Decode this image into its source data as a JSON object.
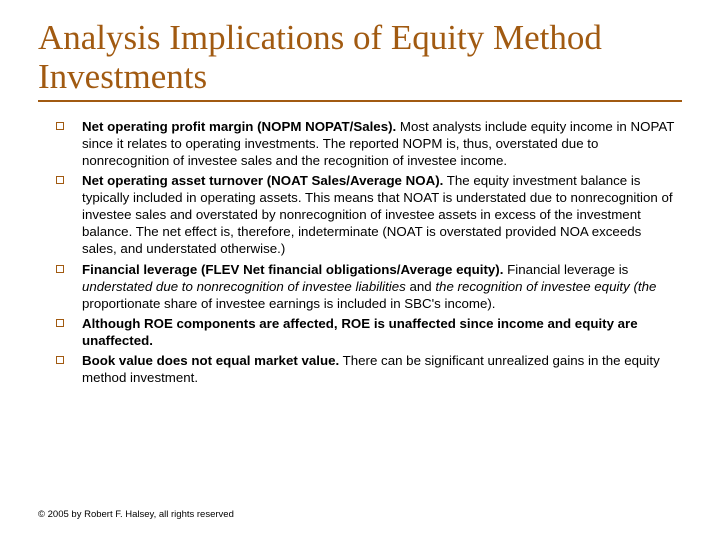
{
  "colors": {
    "accent": "#a15a11",
    "text": "#000000",
    "background": "#ffffff"
  },
  "typography": {
    "title_font": "Times New Roman",
    "title_size_pt": 35,
    "body_font": "Verdana",
    "body_size_pt": 13.3,
    "footer_size_pt": 9.5
  },
  "title": "Analysis Implications of Equity Method Investments",
  "bullets": [
    {
      "lead": "Net operating profit margin (NOPM  NOPAT/Sales).",
      "rest": " Most analysts include equity income in NOPAT since it relates to operating investments. The reported NOPM is, thus, overstated due to nonrecognition of investee sales and the recognition of investee income."
    },
    {
      "lead": "Net operating asset turnover (NOAT  Sales/Average NOA).",
      "rest": " The equity investment balance is typically included in operating assets. This means that NOAT is understated due to nonrecognition of investee sales and overstated by nonrecognition of investee assets in excess of the investment balance. The net effect is, therefore, indeterminate (NOAT is overstated provided NOA exceeds sales, and understated otherwise.)"
    },
    {
      "lead": "Financial leverage (FLEV  Net financial obligations/Average equity).",
      "rest_lead_1": " Financial leverage is ",
      "rest_italic_1": "understated due to nonrecognition of investee liabilities ",
      "rest_mid": "and",
      "rest_italic_2": " the recognition of investee equity (the",
      "rest_tail": " proportionate share of investee earnings is included in SBC's income)."
    },
    {
      "lead": "Although ROE components are affected, ROE is unaffected since income and equity are unaffected.",
      "rest": ""
    },
    {
      "lead": "Book value does not equal market value.",
      "rest": " There can be significant unrealized gains in the equity method investment."
    }
  ],
  "footer": "© 2005 by Robert F. Halsey, all rights reserved"
}
